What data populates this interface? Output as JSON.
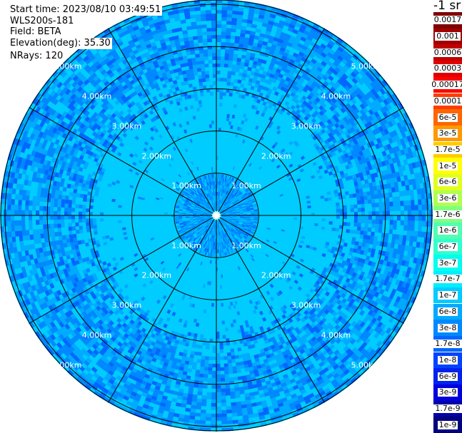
{
  "header": {
    "start_time": "Start time: 2023/08/10 03:49:51",
    "instrument": "WLS200s-181",
    "field": "Field: BETA",
    "elevation": "Elevation(deg): 35.30",
    "nrays": "NRays: 120"
  },
  "scan": {
    "range_rings": [
      {
        "range": 1,
        "label": "1.00km"
      },
      {
        "range": 2,
        "label": "2.00km"
      },
      {
        "range": 3,
        "label": "3.00km"
      },
      {
        "range": 4,
        "label": "4.00km"
      },
      {
        "range": 5,
        "label": "5.00km"
      }
    ],
    "max_range_km": 5.1,
    "spoke_count": 12,
    "nrays": 120,
    "background_color": "#00ccff"
  },
  "colorbar": {
    "units_label": "-1 sr",
    "bins": [
      {
        "label": "0.0017",
        "color": "#800000"
      },
      {
        "label": "0.001",
        "color": "#a00000"
      },
      {
        "label": "0.0006",
        "color": "#c00000"
      },
      {
        "label": "0.0003",
        "color": "#e00000"
      },
      {
        "label": "0.00017",
        "color": "#ff0000"
      },
      {
        "label": "0.0001",
        "color": "#ff3c00"
      },
      {
        "label": "6e-5",
        "color": "#ff6600"
      },
      {
        "label": "3e-5",
        "color": "#ff9900"
      },
      {
        "label": "1.7e-5",
        "color": "#ffcc00"
      },
      {
        "label": "1e-5",
        "color": "#ffff00"
      },
      {
        "label": "6e-6",
        "color": "#e0ff20"
      },
      {
        "label": "3e-6",
        "color": "#b0ff50"
      },
      {
        "label": "1.7e-6",
        "color": "#80ff80"
      },
      {
        "label": "1e-6",
        "color": "#50ffb0"
      },
      {
        "label": "6e-7",
        "color": "#30ffd0"
      },
      {
        "label": "3e-7",
        "color": "#00ffee"
      },
      {
        "label": "1.7e-7",
        "color": "#00eeff"
      },
      {
        "label": "1e-7",
        "color": "#00ccff"
      },
      {
        "label": "6e-8",
        "color": "#00aaff"
      },
      {
        "label": "3e-8",
        "color": "#0088ff"
      },
      {
        "label": "1.7e-8",
        "color": "#0066ff"
      },
      {
        "label": "1e-8",
        "color": "#0044ff"
      },
      {
        "label": "6e-9",
        "color": "#0022ee"
      },
      {
        "label": "3e-9",
        "color": "#0000dd"
      },
      {
        "label": "1.7e-9",
        "color": "#0000aa"
      },
      {
        "label": "1e-9",
        "color": "#000080"
      }
    ]
  }
}
